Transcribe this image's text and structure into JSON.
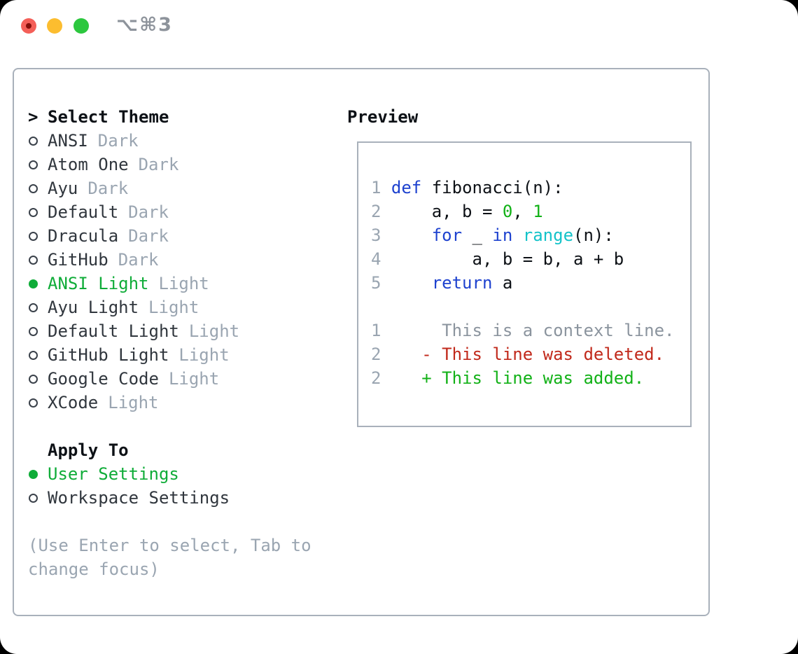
{
  "window": {
    "title": "⌥⌘3"
  },
  "colors": {
    "traffic_red": "#f45f58",
    "traffic_yellow": "#fcbd2f",
    "traffic_green": "#2cc73e",
    "selection_green": "#0fac38",
    "keyword_blue": "#1e42cf",
    "builtin_cyan": "#14c3c9",
    "literal_green": "#12b117",
    "added_green": "#12b117",
    "deleted_red": "#c1291b",
    "muted_gray": "#9aa5b1",
    "border_gray": "#a9b1bb"
  },
  "theme_panel": {
    "prompt": ">",
    "header": "Select Theme",
    "items": [
      {
        "name": "ANSI",
        "variant": "Dark",
        "selected": false
      },
      {
        "name": "Atom One",
        "variant": "Dark",
        "selected": false
      },
      {
        "name": "Ayu",
        "variant": "Dark",
        "selected": false
      },
      {
        "name": "Default",
        "variant": "Dark",
        "selected": false
      },
      {
        "name": "Dracula",
        "variant": "Dark",
        "selected": false
      },
      {
        "name": "GitHub",
        "variant": "Dark",
        "selected": false
      },
      {
        "name": "ANSI Light",
        "variant": "Light",
        "selected": true
      },
      {
        "name": "Ayu Light",
        "variant": "Light",
        "selected": false
      },
      {
        "name": "Default Light",
        "variant": "Light",
        "selected": false
      },
      {
        "name": "GitHub Light",
        "variant": "Light",
        "selected": false
      },
      {
        "name": "Google Code",
        "variant": "Light",
        "selected": false
      },
      {
        "name": "XCode",
        "variant": "Light",
        "selected": false
      }
    ],
    "apply_to": {
      "header": "Apply To",
      "options": [
        {
          "label": "User Settings",
          "selected": true
        },
        {
          "label": "Workspace Settings",
          "selected": false
        }
      ]
    },
    "hint_lines": [
      "(Use Enter to select, Tab to",
      "change focus)"
    ]
  },
  "preview": {
    "header": "Preview",
    "code_lines": [
      {
        "num": "1",
        "segments": [
          {
            "t": "def",
            "c": "keyword"
          },
          {
            "t": " fibonacci(n):",
            "c": "plain"
          }
        ]
      },
      {
        "num": "2",
        "segments": [
          {
            "t": "    a, b = ",
            "c": "plain"
          },
          {
            "t": "0",
            "c": "literal"
          },
          {
            "t": ", ",
            "c": "plain"
          },
          {
            "t": "1",
            "c": "literal"
          }
        ]
      },
      {
        "num": "3",
        "segments": [
          {
            "t": "    ",
            "c": "plain"
          },
          {
            "t": "for",
            "c": "keyword"
          },
          {
            "t": " _ ",
            "c": "plain"
          },
          {
            "t": "in",
            "c": "keyword"
          },
          {
            "t": " ",
            "c": "plain"
          },
          {
            "t": "range",
            "c": "builtin"
          },
          {
            "t": "(n):",
            "c": "plain"
          }
        ]
      },
      {
        "num": "4",
        "segments": [
          {
            "t": "        a, b = b, a + b",
            "c": "plain"
          }
        ]
      },
      {
        "num": "5",
        "segments": [
          {
            "t": "    ",
            "c": "plain"
          },
          {
            "t": "return",
            "c": "keyword"
          },
          {
            "t": " a",
            "c": "plain"
          }
        ]
      }
    ],
    "diff_lines": [
      {
        "num": "1",
        "marker": "",
        "text": "This is a context line.",
        "kind": "context"
      },
      {
        "num": "2",
        "marker": "-",
        "text": "This line was deleted.",
        "kind": "deleted"
      },
      {
        "num": "2",
        "marker": "+",
        "text": "This line was added.",
        "kind": "added"
      }
    ]
  }
}
